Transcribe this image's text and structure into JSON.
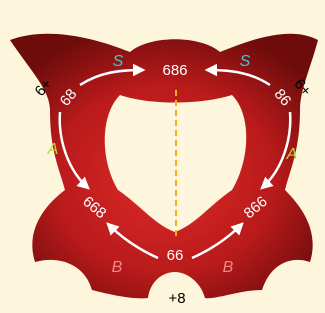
{
  "nodes": [
    {
      "label": "686"
    },
    {
      "label": "68"
    },
    {
      "label": "86"
    },
    {
      "label": "668"
    },
    {
      "label": "866"
    },
    {
      "label": "66"
    }
  ],
  "edge_labels": [
    {
      "label": "S"
    },
    {
      "label": "S"
    },
    {
      "label": "A"
    },
    {
      "label": "A"
    },
    {
      "label": "B"
    },
    {
      "label": "B"
    }
  ],
  "outer_labels": [
    {
      "label": "6+"
    },
    {
      "label": "6+"
    },
    {
      "label": "+8"
    }
  ]
}
